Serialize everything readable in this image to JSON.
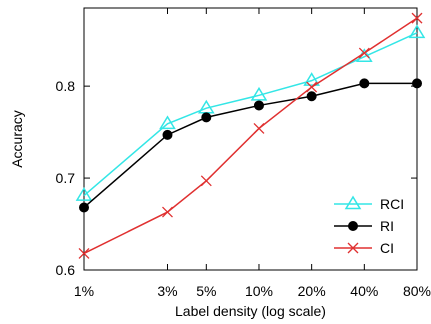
{
  "chart_data": {
    "type": "line",
    "title": "",
    "xlabel": "Label density (log scale)",
    "ylabel": "Accuracy",
    "xscale": "log",
    "x": [
      1,
      3,
      5,
      10,
      20,
      40,
      80
    ],
    "x_tick_labels": [
      "1%",
      "3%",
      "5%",
      "10%",
      "20%",
      "40%",
      "80%"
    ],
    "ylim": [
      0.6,
      0.885
    ],
    "y_ticks": [
      0.6,
      0.7,
      0.8
    ],
    "y_tick_labels": [
      "0.6",
      "0.7",
      "0.8"
    ],
    "grid": false,
    "legend_position": "bottom-right",
    "series": [
      {
        "name": "RCI",
        "color": "#33e6e6",
        "marker": "triangle",
        "values": [
          0.681,
          0.759,
          0.776,
          0.79,
          0.806,
          0.832,
          0.858
        ]
      },
      {
        "name": "RI",
        "color": "#000000",
        "marker": "circle",
        "values": [
          0.668,
          0.747,
          0.766,
          0.779,
          0.789,
          0.803,
          0.803
        ]
      },
      {
        "name": "CI",
        "color": "#e03030",
        "marker": "x",
        "values": [
          0.618,
          0.663,
          0.697,
          0.754,
          0.799,
          0.836,
          0.874
        ]
      }
    ]
  }
}
